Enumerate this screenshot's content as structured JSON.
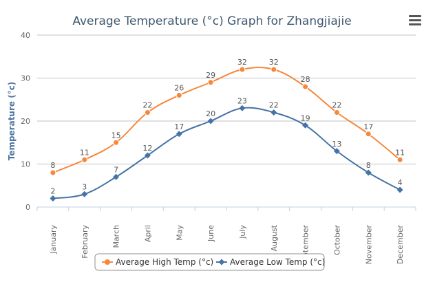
{
  "chart_data": {
    "type": "line",
    "title": "Average Temperature (°c) Graph for Zhangjiajie",
    "ylabel": "Temperature (°c)",
    "xlabel": "",
    "ylim": [
      0,
      40
    ],
    "yticks": [
      "0",
      "10",
      "20",
      "30",
      "40"
    ],
    "categories": [
      "January",
      "February",
      "March",
      "April",
      "May",
      "June",
      "July",
      "August",
      "September",
      "October",
      "November",
      "December"
    ],
    "grid": true,
    "legend_position": "bottom",
    "series": [
      {
        "name": "Average High Temp (°c)",
        "color": "#f7873a",
        "marker": "circle",
        "values": [
          8,
          11,
          15,
          22,
          26,
          29,
          32,
          32,
          28,
          22,
          17,
          11
        ]
      },
      {
        "name": "Average Low Temp (°c)",
        "color": "#4572a7",
        "marker": "diamond",
        "values": [
          2,
          3,
          7,
          12,
          17,
          20,
          23,
          22,
          19,
          13,
          8,
          4
        ]
      }
    ]
  },
  "toolbar": {
    "menu_icon": "hamburger-menu-icon"
  }
}
